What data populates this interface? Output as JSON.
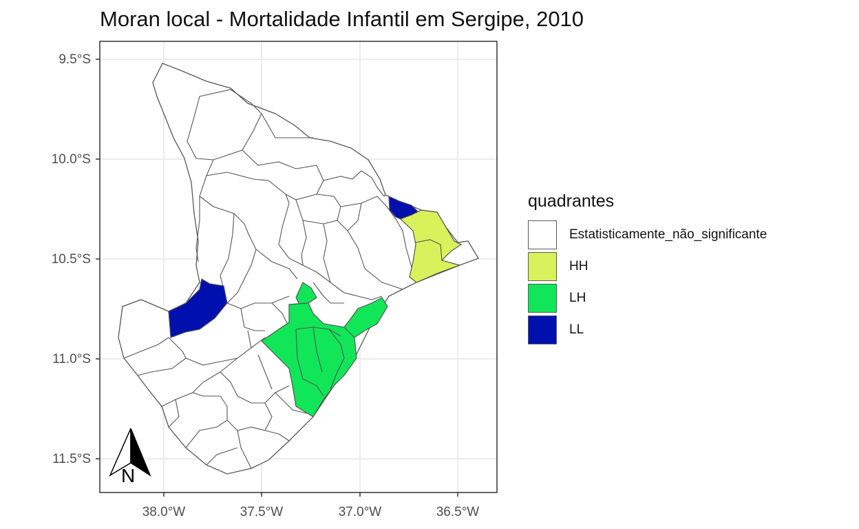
{
  "title": "Moran local - Mortalidade Infantil em Sergipe, 2010",
  "axes": {
    "y_ticks": [
      "9.5°S",
      "10.0°S",
      "10.5°S",
      "11.0°S",
      "11.5°S"
    ],
    "x_ticks": [
      "38.0°W",
      "37.5°W",
      "37.0°W",
      "36.5°W"
    ]
  },
  "legend": {
    "title": "quadrantes",
    "items": [
      {
        "label": "Estatisticamente_não_significante",
        "color": "#ffffff"
      },
      {
        "label": "HH",
        "color": "#d9f15a"
      },
      {
        "label": "LH",
        "color": "#10e657"
      },
      {
        "label": "LL",
        "color": "#0010ae"
      }
    ]
  },
  "north_arrow": {
    "label": "N"
  },
  "colors": {
    "border": "#555555",
    "grid": "#ebebeb",
    "panel_border": "#333333"
  }
}
